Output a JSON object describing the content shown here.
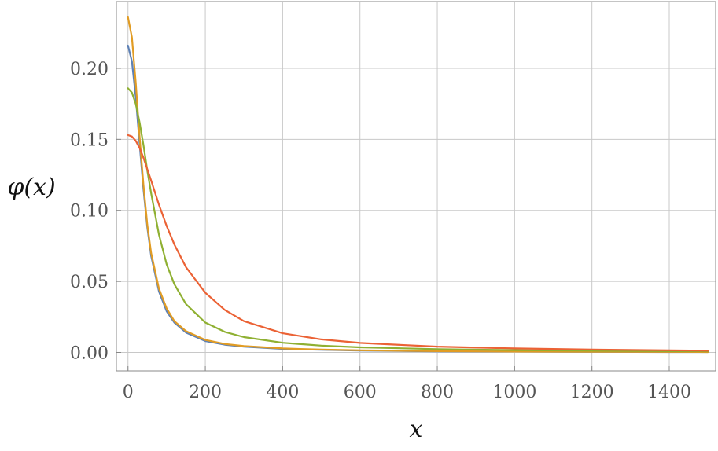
{
  "chart_data": {
    "type": "line",
    "title": "",
    "xlabel": "x",
    "ylabel": "φ(x)",
    "xlim": [
      -30,
      1520
    ],
    "ylim": [
      -0.013,
      0.247
    ],
    "x_ticks": [
      0,
      200,
      400,
      600,
      800,
      1000,
      1200,
      1400
    ],
    "x_tick_labels": [
      "0",
      "200",
      "400",
      "600",
      "800",
      "1000",
      "1200",
      "1400"
    ],
    "y_ticks": [
      0.0,
      0.05,
      0.1,
      0.15,
      0.2
    ],
    "y_tick_labels": [
      "0.00",
      "0.05",
      "0.10",
      "0.15",
      "0.20"
    ],
    "grid": true,
    "legend": "none",
    "series": [
      {
        "color": "#5e81b5",
        "x": [
          0,
          10,
          20,
          30,
          40,
          50,
          60,
          80,
          100,
          120,
          150,
          200,
          250,
          300,
          400,
          500,
          600,
          800,
          1000,
          1200,
          1400,
          1500
        ],
        "values": [
          0.216,
          0.205,
          0.18,
          0.147,
          0.115,
          0.088,
          0.068,
          0.043,
          0.029,
          0.021,
          0.014,
          0.008,
          0.0055,
          0.0041,
          0.0025,
          0.0018,
          0.0013,
          0.0008,
          0.0006,
          0.0004,
          0.0003,
          0.0003
        ]
      },
      {
        "color": "#e19c24",
        "x": [
          0,
          10,
          20,
          30,
          40,
          50,
          60,
          80,
          100,
          120,
          150,
          200,
          250,
          300,
          400,
          500,
          600,
          800,
          1000,
          1200,
          1400,
          1500
        ],
        "values": [
          0.236,
          0.222,
          0.19,
          0.152,
          0.118,
          0.09,
          0.07,
          0.045,
          0.031,
          0.022,
          0.015,
          0.0088,
          0.006,
          0.0045,
          0.0028,
          0.002,
          0.0015,
          0.0009,
          0.0006,
          0.0005,
          0.0004,
          0.0003
        ]
      },
      {
        "color": "#8fb032",
        "x": [
          0,
          10,
          20,
          30,
          40,
          50,
          60,
          80,
          100,
          120,
          150,
          200,
          250,
          300,
          400,
          500,
          600,
          800,
          1000,
          1200,
          1400,
          1500
        ],
        "values": [
          0.186,
          0.183,
          0.175,
          0.162,
          0.146,
          0.128,
          0.112,
          0.083,
          0.062,
          0.048,
          0.034,
          0.021,
          0.0145,
          0.0108,
          0.0068,
          0.0048,
          0.0036,
          0.0023,
          0.0016,
          0.0012,
          0.0009,
          0.0008
        ]
      },
      {
        "color": "#eb6235",
        "x": [
          0,
          10,
          20,
          30,
          40,
          50,
          60,
          80,
          100,
          120,
          150,
          200,
          250,
          300,
          400,
          500,
          600,
          800,
          1000,
          1200,
          1400,
          1500
        ],
        "values": [
          0.153,
          0.152,
          0.149,
          0.144,
          0.137,
          0.129,
          0.121,
          0.104,
          0.089,
          0.076,
          0.06,
          0.042,
          0.03,
          0.022,
          0.0135,
          0.0092,
          0.0067,
          0.0041,
          0.0028,
          0.002,
          0.0015,
          0.0012
        ]
      }
    ]
  }
}
